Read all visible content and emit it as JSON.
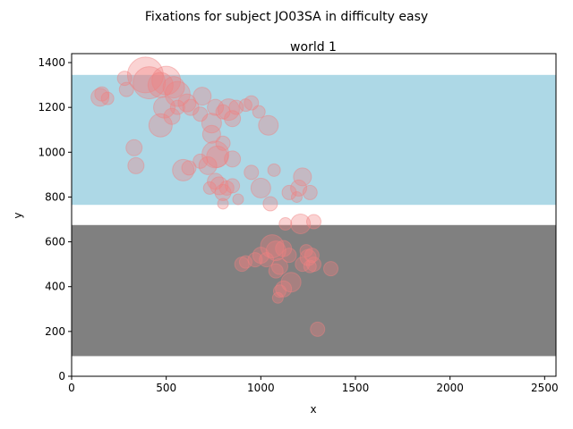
{
  "chart_data": {
    "type": "scatter",
    "suptitle": "Fixations for subject JO03SA in difficulty easy",
    "title": "world 1",
    "xlabel": "x",
    "ylabel": "y",
    "xlim": [
      0,
      2560
    ],
    "ylim": [
      0,
      1440
    ],
    "xticks": [
      0,
      500,
      1000,
      1500,
      2000,
      2500
    ],
    "yticks": [
      0,
      200,
      400,
      600,
      800,
      1000,
      1200,
      1400
    ],
    "grid": false,
    "legend": "none",
    "regions": [
      {
        "color": "#add8e6",
        "x_range": [
          0,
          2560
        ],
        "y_range": [
          765,
          1345
        ]
      },
      {
        "color": "#808080",
        "x_range": [
          0,
          2560
        ],
        "y_range": [
          90,
          675
        ]
      }
    ],
    "marker_color": "#f08080",
    "marker_alpha": 0.35,
    "points": [
      {
        "x": 390,
        "y": 1345,
        "r": 20
      },
      {
        "x": 410,
        "y": 1310,
        "r": 18
      },
      {
        "x": 500,
        "y": 1320,
        "r": 16
      },
      {
        "x": 470,
        "y": 1300,
        "r": 14
      },
      {
        "x": 540,
        "y": 1290,
        "r": 12
      },
      {
        "x": 560,
        "y": 1260,
        "r": 14
      },
      {
        "x": 280,
        "y": 1330,
        "r": 8
      },
      {
        "x": 290,
        "y": 1280,
        "r": 8
      },
      {
        "x": 160,
        "y": 1260,
        "r": 8
      },
      {
        "x": 150,
        "y": 1245,
        "r": 10
      },
      {
        "x": 190,
        "y": 1240,
        "r": 7
      },
      {
        "x": 490,
        "y": 1200,
        "r": 12
      },
      {
        "x": 470,
        "y": 1120,
        "r": 13
      },
      {
        "x": 530,
        "y": 1160,
        "r": 9
      },
      {
        "x": 560,
        "y": 1200,
        "r": 8
      },
      {
        "x": 610,
        "y": 1220,
        "r": 10
      },
      {
        "x": 630,
        "y": 1200,
        "r": 9
      },
      {
        "x": 680,
        "y": 1170,
        "r": 8
      },
      {
        "x": 690,
        "y": 1250,
        "r": 10
      },
      {
        "x": 760,
        "y": 1200,
        "r": 9
      },
      {
        "x": 740,
        "y": 1130,
        "r": 11
      },
      {
        "x": 800,
        "y": 1180,
        "r": 8
      },
      {
        "x": 830,
        "y": 1190,
        "r": 12
      },
      {
        "x": 850,
        "y": 1150,
        "r": 9
      },
      {
        "x": 870,
        "y": 1200,
        "r": 8
      },
      {
        "x": 920,
        "y": 1210,
        "r": 7
      },
      {
        "x": 950,
        "y": 1220,
        "r": 8
      },
      {
        "x": 990,
        "y": 1180,
        "r": 7
      },
      {
        "x": 1040,
        "y": 1120,
        "r": 11
      },
      {
        "x": 330,
        "y": 1020,
        "r": 9
      },
      {
        "x": 340,
        "y": 940,
        "r": 9
      },
      {
        "x": 590,
        "y": 920,
        "r": 12
      },
      {
        "x": 620,
        "y": 930,
        "r": 8
      },
      {
        "x": 680,
        "y": 960,
        "r": 8
      },
      {
        "x": 720,
        "y": 940,
        "r": 10
      },
      {
        "x": 740,
        "y": 1080,
        "r": 10
      },
      {
        "x": 760,
        "y": 990,
        "r": 15
      },
      {
        "x": 770,
        "y": 980,
        "r": 12
      },
      {
        "x": 800,
        "y": 1040,
        "r": 8
      },
      {
        "x": 850,
        "y": 970,
        "r": 9
      },
      {
        "x": 760,
        "y": 870,
        "r": 9
      },
      {
        "x": 780,
        "y": 850,
        "r": 10
      },
      {
        "x": 730,
        "y": 840,
        "r": 7
      },
      {
        "x": 800,
        "y": 820,
        "r": 9
      },
      {
        "x": 820,
        "y": 840,
        "r": 8
      },
      {
        "x": 850,
        "y": 850,
        "r": 8
      },
      {
        "x": 800,
        "y": 770,
        "r": 6
      },
      {
        "x": 880,
        "y": 790,
        "r": 6
      },
      {
        "x": 950,
        "y": 910,
        "r": 8
      },
      {
        "x": 1000,
        "y": 840,
        "r": 11
      },
      {
        "x": 1050,
        "y": 770,
        "r": 8
      },
      {
        "x": 1070,
        "y": 920,
        "r": 7
      },
      {
        "x": 1150,
        "y": 820,
        "r": 8
      },
      {
        "x": 1200,
        "y": 840,
        "r": 9
      },
      {
        "x": 1220,
        "y": 890,
        "r": 10
      },
      {
        "x": 1260,
        "y": 820,
        "r": 8
      },
      {
        "x": 1190,
        "y": 800,
        "r": 6
      },
      {
        "x": 1130,
        "y": 680,
        "r": 7
      },
      {
        "x": 1210,
        "y": 680,
        "r": 11
      },
      {
        "x": 1280,
        "y": 690,
        "r": 8
      },
      {
        "x": 1060,
        "y": 580,
        "r": 13
      },
      {
        "x": 1080,
        "y": 560,
        "r": 11
      },
      {
        "x": 1120,
        "y": 570,
        "r": 9
      },
      {
        "x": 1150,
        "y": 540,
        "r": 8
      },
      {
        "x": 1000,
        "y": 540,
        "r": 9
      },
      {
        "x": 970,
        "y": 520,
        "r": 8
      },
      {
        "x": 900,
        "y": 500,
        "r": 8
      },
      {
        "x": 920,
        "y": 510,
        "r": 7
      },
      {
        "x": 1030,
        "y": 520,
        "r": 8
      },
      {
        "x": 1100,
        "y": 490,
        "r": 9
      },
      {
        "x": 1080,
        "y": 470,
        "r": 8
      },
      {
        "x": 1160,
        "y": 420,
        "r": 11
      },
      {
        "x": 1120,
        "y": 390,
        "r": 9
      },
      {
        "x": 1100,
        "y": 380,
        "r": 7
      },
      {
        "x": 1090,
        "y": 350,
        "r": 6
      },
      {
        "x": 1220,
        "y": 500,
        "r": 8
      },
      {
        "x": 1240,
        "y": 560,
        "r": 7
      },
      {
        "x": 1250,
        "y": 530,
        "r": 9
      },
      {
        "x": 1270,
        "y": 540,
        "r": 8
      },
      {
        "x": 1260,
        "y": 490,
        "r": 7
      },
      {
        "x": 1280,
        "y": 500,
        "r": 8
      },
      {
        "x": 1370,
        "y": 480,
        "r": 8
      },
      {
        "x": 1300,
        "y": 210,
        "r": 8
      }
    ]
  }
}
